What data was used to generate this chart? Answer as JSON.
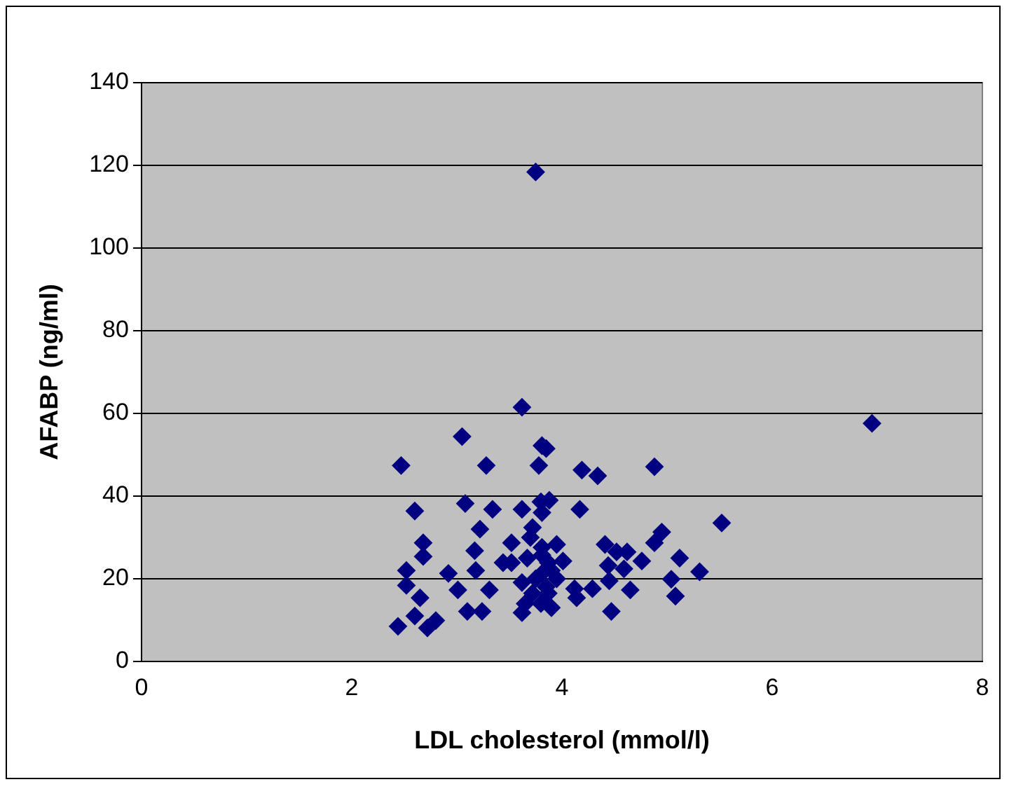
{
  "chart_data": {
    "type": "scatter",
    "xlabel": "LDL cholesterol (mmol/l)",
    "ylabel": "AFABP (ng/ml)",
    "xlim": [
      0,
      8
    ],
    "xticks": [
      0,
      2,
      4,
      6,
      8
    ],
    "ylim": [
      0,
      140
    ],
    "yticks": [
      0,
      20,
      40,
      60,
      80,
      100,
      120,
      140
    ],
    "grid": "y",
    "legend": false,
    "marker": "diamond",
    "series": [
      {
        "color": "#000080",
        "x": [
          3.75,
          3.62,
          3.05,
          3.85,
          6.95,
          2.47,
          3.28,
          3.78,
          2.6,
          3.08,
          3.34,
          3.22,
          3.62,
          2.68,
          2.68,
          3.17,
          3.18,
          2.52,
          2.92,
          2.52,
          2.65,
          3.01,
          3.1,
          3.24,
          3.31,
          2.44,
          2.6,
          2.8,
          2.72,
          3.52,
          3.52,
          3.62,
          3.62,
          3.72,
          3.44,
          3.8,
          3.72,
          3.81,
          3.81,
          3.87,
          3.67,
          3.81,
          4.19,
          4.34,
          4.88,
          3.88,
          3.81,
          4.17,
          5.52,
          4.95,
          4.88,
          3.95,
          4.41,
          4.62,
          4.52,
          4.01,
          4.76,
          5.12,
          4.44,
          4.59,
          5.31,
          3.81,
          5.04,
          4.45,
          4.12,
          4.29,
          4.65,
          5.08,
          4.14,
          3.87,
          4.47,
          3.8,
          3.7,
          3.75,
          3.85,
          3.9,
          3.95,
          3.65,
          3.9
        ],
        "values": [
          118.4,
          61.5,
          54.4,
          51.5,
          57.6,
          47.4,
          47.4,
          47.4,
          36.4,
          38.2,
          36.8,
          32,
          36.8,
          28.7,
          25.4,
          26.8,
          22,
          22,
          21.3,
          18.4,
          15.4,
          17.3,
          12.1,
          12.1,
          17.3,
          8.5,
          11,
          9.9,
          8.1,
          28.7,
          23.9,
          19.1,
          11.8,
          16.5,
          23.9,
          38.6,
          32.4,
          27.6,
          21.3,
          23.9,
          25,
          52.2,
          46.3,
          44.9,
          47.1,
          39,
          36,
          36.8,
          33.5,
          31.3,
          28.7,
          28.3,
          28.3,
          26.5,
          26.5,
          24.3,
          24.3,
          25,
          23.2,
          22.4,
          21.7,
          25.7,
          19.9,
          19.5,
          17.6,
          17.6,
          17.3,
          15.8,
          15.4,
          16.5,
          12.1,
          14,
          30,
          20,
          18,
          22,
          20,
          14,
          13
        ]
      }
    ]
  }
}
